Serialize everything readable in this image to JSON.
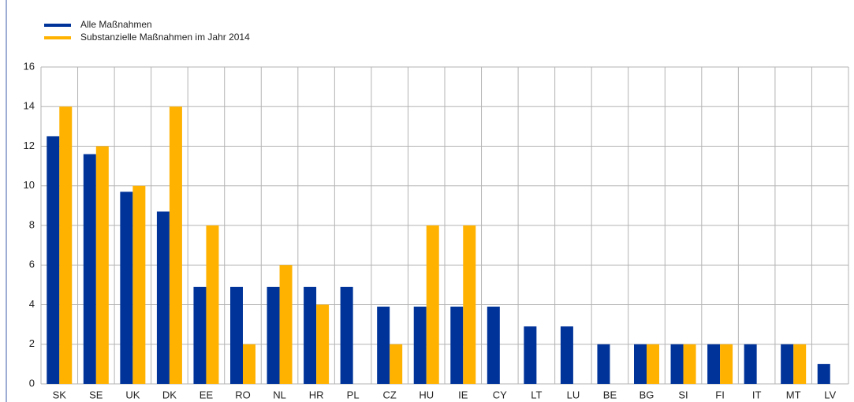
{
  "chart_data": {
    "type": "bar",
    "categories": [
      "SK",
      "SE",
      "UK",
      "DK",
      "EE",
      "RO",
      "NL",
      "HR",
      "PL",
      "CZ",
      "HU",
      "IE",
      "CY",
      "LT",
      "LU",
      "BE",
      "BG",
      "SI",
      "FI",
      "IT",
      "MT",
      "LV"
    ],
    "series": [
      {
        "name": "Alle Maßnahmen",
        "color": "#003399",
        "values": [
          12.5,
          11.6,
          9.7,
          8.7,
          4.9,
          4.9,
          4.9,
          4.9,
          4.9,
          3.9,
          3.9,
          3.9,
          3.9,
          2.9,
          2.9,
          2.0,
          2.0,
          2.0,
          2.0,
          2.0,
          2.0,
          1.0
        ]
      },
      {
        "name": "Substanzielle Maßnahmen im Jahr 2014",
        "color": "#ffb200",
        "values": [
          14,
          12,
          10,
          14,
          8,
          2,
          6,
          4,
          null,
          2,
          8,
          8,
          null,
          null,
          null,
          null,
          2,
          2,
          2,
          null,
          2,
          null
        ]
      }
    ],
    "ylim": [
      0,
      16
    ],
    "yticks": [
      0,
      2,
      4,
      6,
      8,
      10,
      12,
      14,
      16
    ],
    "grid": true,
    "legend": "top-left"
  }
}
